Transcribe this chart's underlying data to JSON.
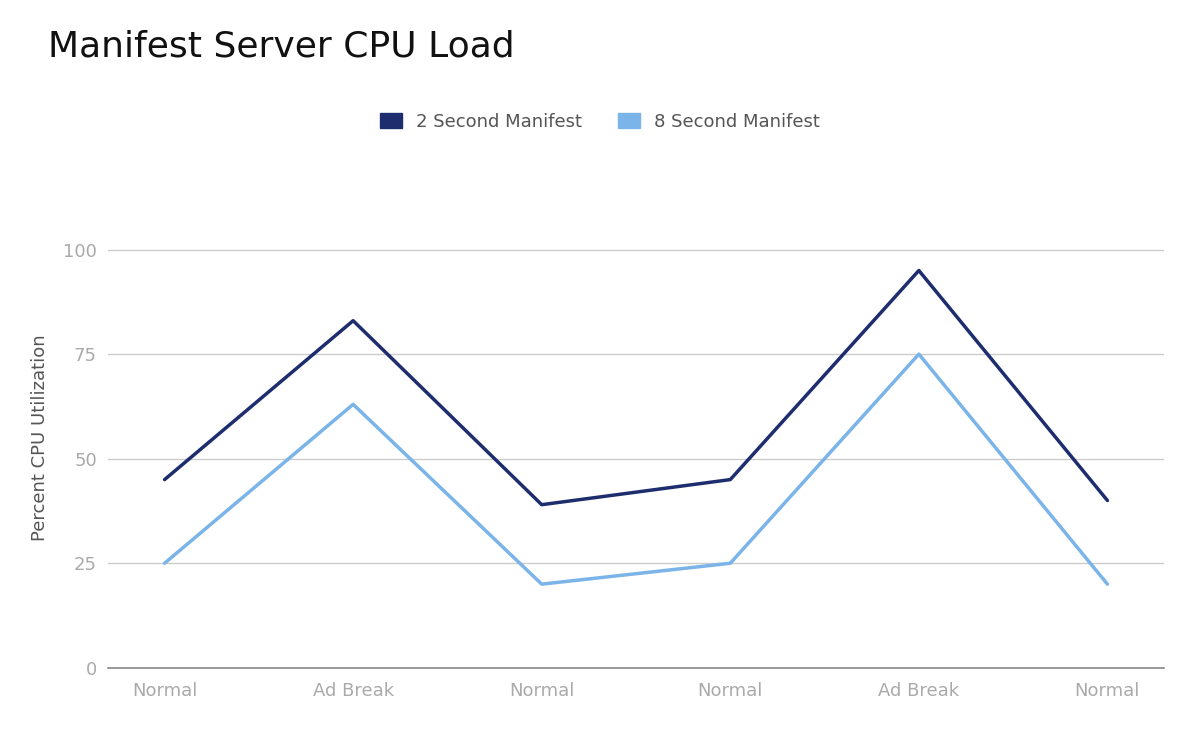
{
  "title": "Manifest Server CPU Load",
  "ylabel": "Percent CPU Utilization",
  "x_labels": [
    "Normal",
    "Ad Break",
    "Normal",
    "Normal",
    "Ad Break",
    "Normal"
  ],
  "series": [
    {
      "name": "2 Second Manifest",
      "color": "#1e2d6e",
      "linewidth": 2.5,
      "values": [
        45,
        83,
        39,
        45,
        95,
        40
      ]
    },
    {
      "name": "8 Second Manifest",
      "color": "#7ab4e8",
      "linewidth": 2.5,
      "values": [
        25,
        63,
        20,
        25,
        75,
        20
      ]
    }
  ],
  "ylim": [
    0,
    110
  ],
  "yticks": [
    0,
    25,
    50,
    75,
    100
  ],
  "background_color": "#ffffff",
  "grid_color": "#cccccc",
  "tick_color": "#aaaaaa",
  "label_color": "#555555",
  "title_fontsize": 26,
  "axis_label_fontsize": 13,
  "tick_fontsize": 13,
  "legend_fontsize": 13
}
